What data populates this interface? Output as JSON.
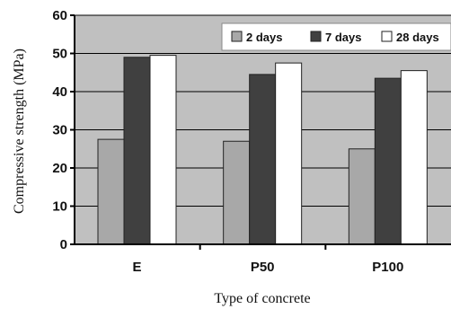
{
  "chart_data": {
    "type": "bar",
    "categories": [
      "E",
      "P50",
      "P100"
    ],
    "series": [
      {
        "name": "2 days",
        "values": [
          27.5,
          27,
          25
        ],
        "color": "#a8a8a8"
      },
      {
        "name": "7 days",
        "values": [
          49,
          44.5,
          43.5
        ],
        "color": "#404040"
      },
      {
        "name": "28 days",
        "values": [
          49.5,
          47.5,
          45.5
        ],
        "color": "#ffffff"
      }
    ],
    "xlabel": "Type of concrete",
    "ylabel": "Compressive strength (MPa)",
    "ylim": [
      0,
      60
    ],
    "yticks": [
      0,
      10,
      20,
      30,
      40,
      50,
      60
    ],
    "grid": true,
    "legend_position": "top-right",
    "plot_background": "#c0c0c0"
  }
}
